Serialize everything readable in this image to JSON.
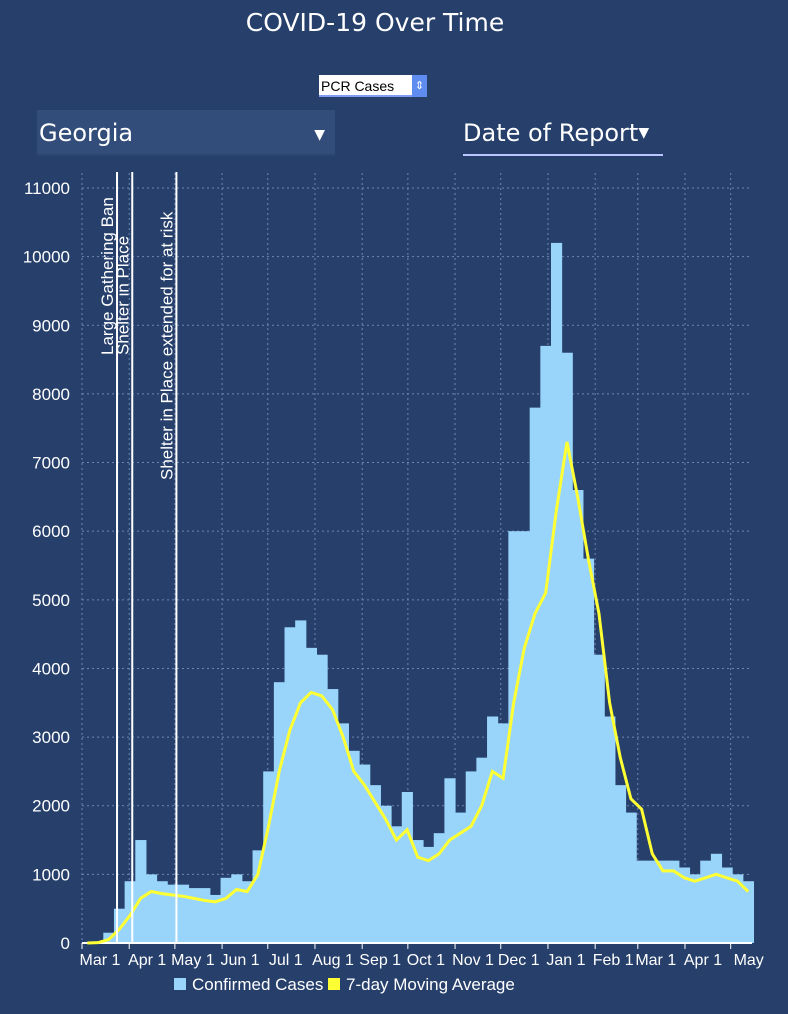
{
  "title": "COVID-19 Over Time",
  "controls": {
    "metric": "PCR Cases",
    "state": "Georgia",
    "date_type": "Date of Report"
  },
  "chart_data": {
    "type": "bar+line",
    "title": "COVID-19 Over Time",
    "x_start": "2020-03-01",
    "x_step_days": 7,
    "ylim": [
      0,
      11000
    ],
    "yticks": [
      0,
      1000,
      2000,
      3000,
      4000,
      5000,
      6000,
      7000,
      8000,
      9000,
      10000,
      11000
    ],
    "xtick_labels": [
      "Mar 1",
      "Apr 1",
      "May 1",
      "Jun 1",
      "Jul 1",
      "Aug 1",
      "Sep 1",
      "Oct 1",
      "Nov 1",
      "Dec 1",
      "Jan 1",
      "Feb 1",
      "Mar 1",
      "Apr 1",
      "May"
    ],
    "xtick_days": [
      0,
      31,
      61,
      92,
      122,
      153,
      184,
      214,
      245,
      275,
      306,
      337,
      365,
      396,
      426
    ],
    "legend": [
      "Confirmed Cases",
      "7-day Moving Average"
    ],
    "legend_position": "bottom",
    "colors": {
      "bars": "#99d5fb",
      "line": "#ffff33",
      "background": "#263f6b"
    },
    "series": [
      {
        "name": "Confirmed Cases",
        "values": [
          10,
          20,
          150,
          500,
          900,
          1500,
          1000,
          900,
          850,
          850,
          800,
          800,
          700,
          950,
          1000,
          900,
          1350,
          2500,
          3800,
          4600,
          4700,
          4300,
          4200,
          3700,
          3200,
          2800,
          2600,
          2300,
          2000,
          1700,
          2200,
          1500,
          1400,
          1600,
          2400,
          1900,
          2500,
          2700,
          3300,
          3200,
          6000,
          6000,
          7800,
          8700,
          10200,
          8600,
          6600,
          5600,
          4200,
          3300,
          2300,
          1900,
          1200,
          1200,
          1200,
          1200,
          1100,
          1000,
          1200,
          1300,
          1100,
          1000,
          900
        ]
      },
      {
        "name": "7-day Moving Average",
        "values": [
          0,
          5,
          50,
          200,
          400,
          650,
          750,
          720,
          700,
          680,
          650,
          620,
          600,
          650,
          780,
          750,
          1000,
          1700,
          2500,
          3100,
          3500,
          3650,
          3600,
          3400,
          3000,
          2500,
          2300,
          2050,
          1800,
          1500,
          1650,
          1250,
          1200,
          1300,
          1500,
          1600,
          1700,
          2000,
          2500,
          2400,
          3500,
          4300,
          4800,
          5100,
          6300,
          7300,
          6500,
          5600,
          4800,
          3500,
          2700,
          2100,
          1950,
          1300,
          1050,
          1050,
          950,
          900,
          950,
          1000,
          950,
          900,
          750
        ]
      }
    ],
    "annotations": [
      {
        "label": "Large Gathering Ban",
        "day": 23
      },
      {
        "label": "Shelter in Place",
        "day": 33
      },
      {
        "label": "Shelter in Place extended for at risk",
        "day": 62
      }
    ]
  }
}
